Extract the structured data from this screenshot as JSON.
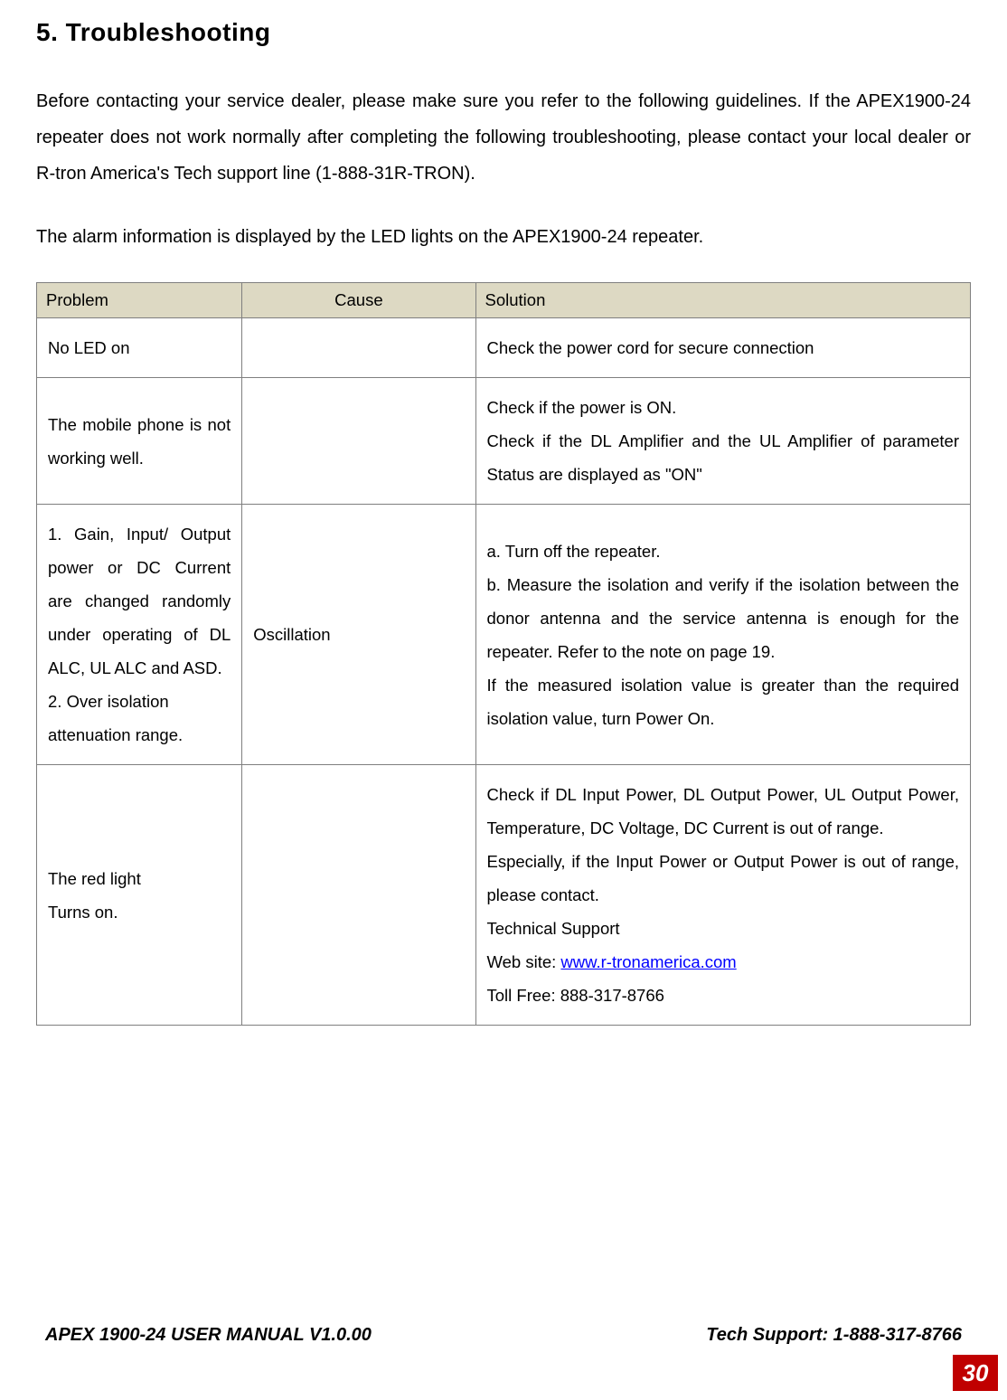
{
  "heading": "5.  Troubleshooting",
  "intro": "Before contacting your service dealer, please make sure you refer to the following guidelines. If the APEX1900-24 repeater does not work normally after completing the following troubleshooting, please contact your local dealer or R-tron America's Tech support line (1-888-31R-TRON).",
  "alarm_line": "The alarm information is displayed by the LED lights on the APEX1900-24 repeater.",
  "table": {
    "headers": {
      "problem": "Problem",
      "cause": "Cause",
      "solution": "Solution"
    },
    "rows": [
      {
        "problem": "No LED on",
        "cause": "",
        "solution": "Check the power cord for secure connection"
      },
      {
        "problem": "The mobile phone is not working well.",
        "cause": "",
        "solution": "Check if the power is ON.\nCheck if the DL Amplifier and the UL Amplifier of parameter Status are displayed as \"ON\""
      },
      {
        "problem": "1. Gain, Input/ Output power or DC Current are changed randomly under operating of DL ALC, UL ALC and ASD.\n2. Over isolation\n  attenuation range.",
        "cause": "Oscillation",
        "solution": "a. Turn off the repeater.\nb. Measure the isolation and verify if the isolation between the donor antenna and the service antenna is enough for the repeater. Refer to the note on page 19.\nIf the measured isolation value is greater than the required isolation value, turn Power On."
      },
      {
        "problem": "The red light\nTurns on.",
        "cause": "",
        "solution_pre": "Check if DL Input Power, DL Output Power, UL Output Power, Temperature, DC Voltage, DC Current is out of range.\nEspecially, if the Input Power or Output Power is out of range, please contact.\nTechnical Support\nWeb site: ",
        "link_text": "www.r-tronamerica.com",
        "solution_post": "\nToll Free: 888-317-8766"
      }
    ]
  },
  "footer": {
    "left": "APEX 1900-24 USER MANUAL V1.0.00",
    "right": "Tech Support: 1-888-317-8766"
  },
  "page_number": "30",
  "colors": {
    "header_bg": "#ddd9c3",
    "border": "#7f7f7f",
    "link": "#0000ff",
    "page_bg": "#c00000",
    "page_fg": "#ffffff"
  },
  "fonts": {
    "heading_size": 28,
    "body_size": 20,
    "table_size": 18.5,
    "footer_size": 20,
    "page_number_size": 26
  }
}
